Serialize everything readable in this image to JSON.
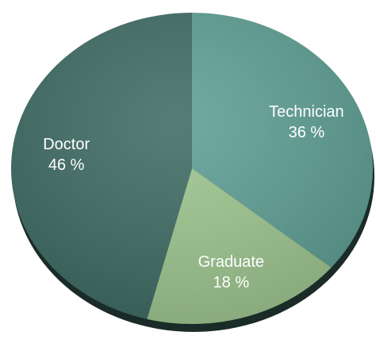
{
  "chart_data": {
    "type": "pie",
    "categories": [
      "Technician",
      "Graduate",
      "Doctor"
    ],
    "values": [
      36,
      18,
      46
    ],
    "value_labels": [
      "36 %",
      "18 %",
      "46 %"
    ],
    "colors": [
      "#5e9f94",
      "#9ec690",
      "#3f6b64"
    ]
  }
}
